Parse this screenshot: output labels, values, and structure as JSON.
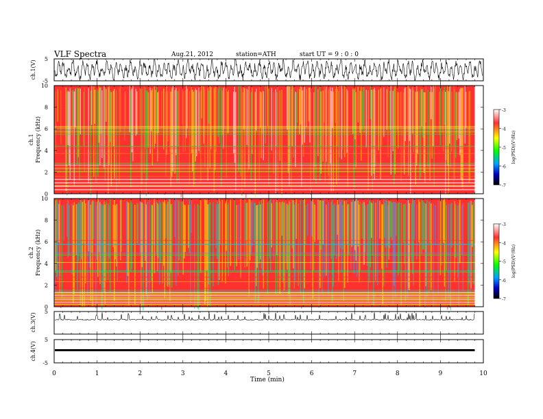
{
  "header": {
    "title": "VLF  Spectra",
    "date": "Aug.21, 2012",
    "station": "station=ATH",
    "start": "start  UT  =    9  : 0  : 0"
  },
  "colorbar": {
    "label": "log(PSD)(V²/Hz)",
    "ticks": [
      "-3",
      "-4",
      "-5",
      "-6",
      "-7"
    ],
    "stops": [
      "#ffffff",
      "#ff3030",
      "#ffff00",
      "#00ff00",
      "#00a0ff",
      "#0000c0",
      "#000000"
    ]
  },
  "chart_data": [
    {
      "type": "line",
      "name": "ch1-waveform",
      "ylabel": "ch.1(V)",
      "ylim": [
        -5,
        5
      ],
      "yticks": [
        "5",
        "-5"
      ],
      "xlim": [
        0,
        10
      ],
      "description_values": {
        "amplitude": 5
      }
    },
    {
      "type": "heatmap",
      "name": "ch1-spectrogram",
      "ylabel_line1": "ch.1",
      "ylabel_line2": "Frequency  (kHz)",
      "ylim": [
        0,
        10
      ],
      "yticks": [
        "0",
        "2",
        "4",
        "6",
        "8",
        "10"
      ],
      "xlim": [
        0,
        9.8
      ],
      "dominant_log_psd": -4
    },
    {
      "type": "heatmap",
      "name": "ch2-spectrogram",
      "ylabel_line1": "ch.2",
      "ylabel_line2": "Frequency  (kHz)",
      "ylim": [
        0,
        10
      ],
      "yticks": [
        "0",
        "2",
        "4",
        "6",
        "8",
        "10"
      ],
      "xlim": [
        0,
        9.8
      ],
      "dominant_log_psd": -4.5
    },
    {
      "type": "line",
      "name": "ch3-waveform",
      "ylabel": "ch.3(V)",
      "ylim": [
        -5,
        5
      ],
      "yticks": [
        "5"
      ],
      "xlim": [
        0,
        9.8
      ]
    },
    {
      "type": "line",
      "name": "ch4-waveform",
      "ylabel": "ch.4(V)",
      "ylim": [
        -5,
        5
      ],
      "yticks": [
        "5",
        "-5"
      ],
      "xlim": [
        0,
        9.8
      ]
    }
  ],
  "xaxis": {
    "label": "Time  (min)",
    "ticks": [
      "0",
      "1",
      "2",
      "3",
      "4",
      "5",
      "6",
      "7",
      "8",
      "9",
      "10"
    ]
  }
}
